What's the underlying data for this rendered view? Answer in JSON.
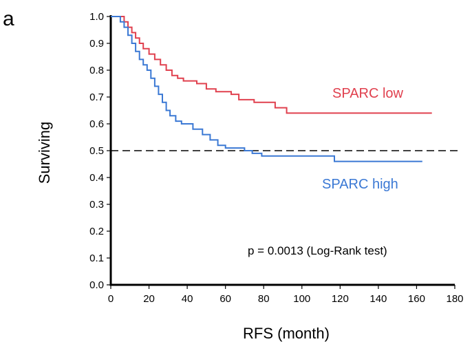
{
  "chart_data": {
    "type": "line",
    "panel_label": "a",
    "xlabel": "RFS (month)",
    "ylabel": "Surviving",
    "xlim": [
      0,
      180
    ],
    "ylim": [
      0.0,
      1.0
    ],
    "x_ticks": [
      "0",
      "20",
      "40",
      "60",
      "80",
      "100",
      "120",
      "140",
      "160",
      "180"
    ],
    "y_ticks": [
      "0.0",
      "0.1",
      "0.2",
      "0.3",
      "0.4",
      "0.5",
      "0.6",
      "0.7",
      "0.8",
      "0.9",
      "1.0"
    ],
    "grid": false,
    "reference_line": {
      "y": 0.5,
      "style": "dashed"
    },
    "annotation": "p = 0.0013 (Log-Rank test)",
    "series": [
      {
        "name": "SPARC low",
        "color": "#e0404e",
        "points": [
          [
            0,
            1.0
          ],
          [
            5,
            1.0
          ],
          [
            7,
            0.98
          ],
          [
            9,
            0.96
          ],
          [
            11,
            0.94
          ],
          [
            13,
            0.92
          ],
          [
            15,
            0.9
          ],
          [
            17,
            0.88
          ],
          [
            20,
            0.86
          ],
          [
            23,
            0.84
          ],
          [
            26,
            0.82
          ],
          [
            29,
            0.8
          ],
          [
            32,
            0.78
          ],
          [
            35,
            0.77
          ],
          [
            38,
            0.76
          ],
          [
            45,
            0.75
          ],
          [
            50,
            0.73
          ],
          [
            55,
            0.72
          ],
          [
            63,
            0.71
          ],
          [
            67,
            0.69
          ],
          [
            75,
            0.68
          ],
          [
            84,
            0.68
          ],
          [
            86,
            0.66
          ],
          [
            92,
            0.64
          ],
          [
            120,
            0.64
          ],
          [
            168,
            0.64
          ]
        ]
      },
      {
        "name": "SPARC high",
        "color": "#3a78d4",
        "points": [
          [
            0,
            1.0
          ],
          [
            4,
            1.0
          ],
          [
            5,
            0.98
          ],
          [
            7,
            0.96
          ],
          [
            9,
            0.93
          ],
          [
            11,
            0.9
          ],
          [
            13,
            0.87
          ],
          [
            15,
            0.84
          ],
          [
            17,
            0.82
          ],
          [
            19,
            0.8
          ],
          [
            21,
            0.77
          ],
          [
            23,
            0.74
          ],
          [
            25,
            0.71
          ],
          [
            27,
            0.68
          ],
          [
            29,
            0.65
          ],
          [
            31,
            0.63
          ],
          [
            34,
            0.61
          ],
          [
            37,
            0.6
          ],
          [
            43,
            0.58
          ],
          [
            48,
            0.56
          ],
          [
            52,
            0.54
          ],
          [
            56,
            0.52
          ],
          [
            60,
            0.51
          ],
          [
            70,
            0.5
          ],
          [
            74,
            0.49
          ],
          [
            79,
            0.48
          ],
          [
            90,
            0.48
          ],
          [
            116,
            0.48
          ],
          [
            117,
            0.46
          ],
          [
            163,
            0.46
          ]
        ]
      }
    ]
  }
}
